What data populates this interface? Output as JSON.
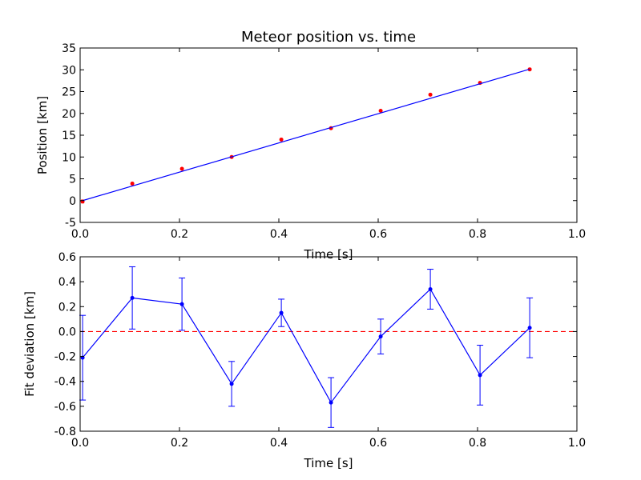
{
  "chart_data": [
    {
      "type": "scatter",
      "title": "Meteor position vs. time",
      "xlabel": "Time [s]",
      "ylabel": "Position [km]",
      "xlim": [
        0.0,
        1.0
      ],
      "ylim": [
        -5,
        35
      ],
      "xticks": [
        "0.0",
        "0.2",
        "0.4",
        "0.6",
        "0.8",
        "1.0"
      ],
      "yticks": [
        "-5",
        "0",
        "5",
        "10",
        "15",
        "20",
        "25",
        "30",
        "35"
      ],
      "grid": false,
      "series": [
        {
          "kind": "points-with-errorbars",
          "color": "#ff0000",
          "x": [
            0.005,
            0.105,
            0.205,
            0.305,
            0.405,
            0.505,
            0.605,
            0.705,
            0.805,
            0.905
          ],
          "y": [
            -0.2,
            3.9,
            7.3,
            10.0,
            14.0,
            16.6,
            20.6,
            24.3,
            27.0,
            30.1
          ],
          "yerr": [
            0.34,
            0.25,
            0.21,
            0.18,
            0.11,
            0.2,
            0.14,
            0.16,
            0.24,
            0.24
          ]
        },
        {
          "kind": "fit-line",
          "color": "#0000ff",
          "x": [
            0.005,
            0.905
          ],
          "y": [
            0.0,
            30.15
          ]
        }
      ]
    },
    {
      "type": "line",
      "title": "",
      "xlabel": "Time [s]",
      "ylabel": "Fit deviation [km]",
      "xlim": [
        0.0,
        1.0
      ],
      "ylim": [
        -0.8,
        0.6
      ],
      "xticks": [
        "0.0",
        "0.2",
        "0.4",
        "0.6",
        "0.8",
        "1.0"
      ],
      "yticks": [
        "-0.8",
        "-0.6",
        "-0.4",
        "-0.2",
        "0.0",
        "0.2",
        "0.4",
        "0.6"
      ],
      "grid": false,
      "reference_line": {
        "y": 0.0,
        "color": "#ff0000",
        "style": "dashed"
      },
      "series": [
        {
          "kind": "line-with-errorbars",
          "color": "#0000ff",
          "x": [
            0.005,
            0.105,
            0.205,
            0.305,
            0.405,
            0.505,
            0.605,
            0.705,
            0.805,
            0.905
          ],
          "y": [
            -0.21,
            0.27,
            0.22,
            -0.42,
            0.15,
            -0.57,
            -0.04,
            0.34,
            -0.35,
            0.03
          ],
          "yerr": [
            0.34,
            0.25,
            0.21,
            0.18,
            0.11,
            0.2,
            0.14,
            0.16,
            0.24,
            0.24
          ]
        }
      ]
    }
  ]
}
